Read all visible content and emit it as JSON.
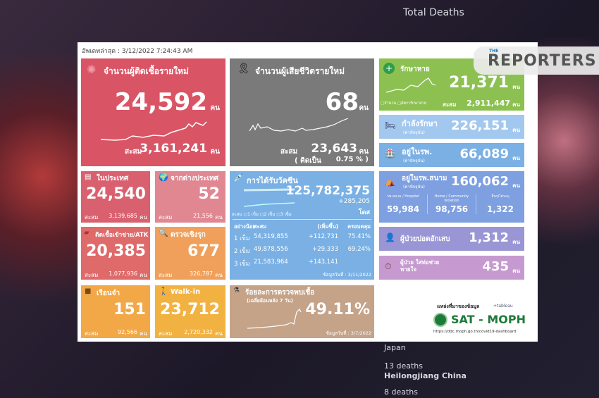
{
  "background": {
    "title": "Total Deaths",
    "country": "Japan",
    "deaths1": "13 deaths",
    "region": "Heilongjiang China",
    "deaths2": "8 deaths"
  },
  "updated": "อัพเดทล่าสุด : 3/12/2022 7:24:43 AM",
  "unit": "คน",
  "acc": "สะสม",
  "new_cases": {
    "title": "จำนวนผู้ติดเชื้อรายใหม่",
    "value": "24,592",
    "total": "3,161,241"
  },
  "new_deaths": {
    "title": "จำนวนผู้เสียชีวิตรายใหม่",
    "value": "68",
    "total": "23,643",
    "pct_label": "( คิดเป็น",
    "pct": "0.75 % )"
  },
  "domestic": {
    "title": "ในประเทศ",
    "value": "24,540",
    "total": "3,139,685"
  },
  "imported": {
    "title": "จากต่างประเทศ",
    "value": "52",
    "total": "21,556"
  },
  "atk": {
    "title": "ติดเชื้อเข้าข่าย/ATK",
    "value": "20,385",
    "total": "1,077,936"
  },
  "proactive": {
    "title": "ตรวจเชิงรุก",
    "value": "677",
    "total": "326,787"
  },
  "prison": {
    "title": "เรือนจำ",
    "value": "151",
    "total": "92,566"
  },
  "walkin": {
    "title": "Walk-in",
    "value": "23,712",
    "total": "2,720,332"
  },
  "vaccine": {
    "title": "การได้รับวัคซีน",
    "total": "125,782,375",
    "new": "+285,205",
    "unit": "โดส",
    "legend": "สะสม ▢1 เข็ม ▢2 เข็ม ▢3 เข็ม",
    "headers": [
      "อย่างน้อย",
      "สะสม",
      "(เพิ่มขึ้น)",
      "ครอบคลุม"
    ],
    "rows": [
      [
        "1 เข็ม",
        "54,319,855",
        "+112,731",
        "75.41%"
      ],
      [
        "2 เข็ม",
        "49,878,556",
        "+29,333",
        "69.24%"
      ],
      [
        "3 เข็ม",
        "21,583,964",
        "+143,141",
        ""
      ]
    ],
    "date": "ข้อมูลวันที่ : 3/11/2022"
  },
  "positivity": {
    "title": "ร้อยละการตรวจพบเชื้อ",
    "sub": "(เฉลี่ยย้อนหลัง 7 วัน)",
    "value": "49.11%",
    "date": "ข้อมูลวันที่ : 3/7/2022"
  },
  "recovered": {
    "title": "รักษาหาย",
    "value": "21,371",
    "total": "2,911,447",
    "legend": "▢จำนวน ▢อัตรารักษาหาย"
  },
  "treating": {
    "title": "กำลังรักษา",
    "sub": "(ค่าปัจจุบัน)",
    "value": "226,151"
  },
  "hospital": {
    "title": "อยู่ในรพ.",
    "sub": "(ค่าปัจจุบัน)",
    "value": "66,089"
  },
  "field": {
    "title": "อยู่ในรพ.สนาม",
    "sub": "(ค่าปัจจุบัน)",
    "value": "160,062",
    "cols": [
      {
        "label": "รพ.สนาม / Hospitel",
        "value": "59,984"
      },
      {
        "label": "Home / Community Isolation",
        "value": "98,756"
      },
      {
        "label": "อื่นๆ/ไม่ระบุ",
        "value": "1,322"
      }
    ]
  },
  "pneumonia": {
    "title": "ผู้ป่วยปอดอักเสบ",
    "value": "1,312"
  },
  "ventilator": {
    "title": "ผู้ป่วย ใส่ท่อช่วยหายใจ",
    "value": "435"
  },
  "source": {
    "label": "แหล่งที่มาของข้อมูล",
    "tableau": "+tableau",
    "name": "SAT - MOPH",
    "url": "https://ddc.moph.go.th/covid19-dashboard"
  },
  "brand": {
    "the": "THE",
    "name": "REPORTERS"
  },
  "colors": {
    "red": "#d95566",
    "gray": "#7a7a7a",
    "green": "#8cc152",
    "orange": "#f0a04b",
    "blue": "#7aaee0"
  }
}
